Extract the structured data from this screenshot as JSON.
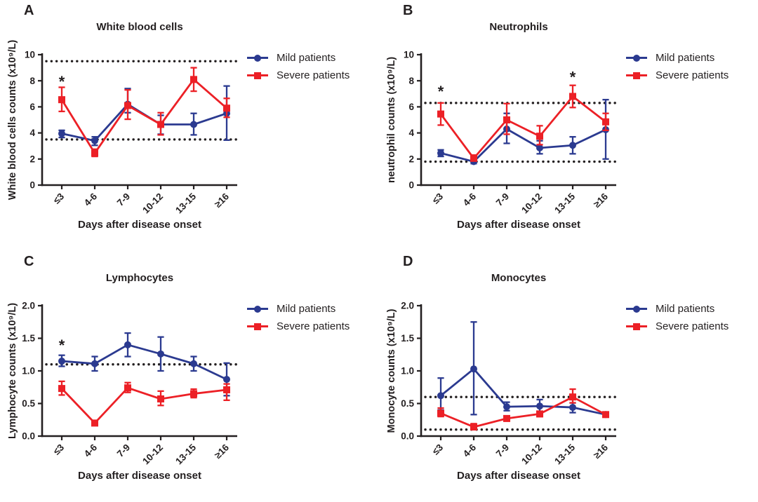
{
  "figure": {
    "background": "#ffffff"
  },
  "colors": {
    "mild": "#2B3A90",
    "severe": "#EC2026",
    "axis": "#231F20",
    "text": "#231F20"
  },
  "chart_data": [
    {
      "type": "line",
      "panel_label": "A",
      "title": "White blood cells",
      "xlabel": "Days after disease onset",
      "ylabel": "White blood cells counts (x10⁹/L)",
      "ylim": [
        0,
        10
      ],
      "yticks": [
        "0",
        "2",
        "4",
        "6",
        "8",
        "10"
      ],
      "reference_lines": [
        9.5,
        3.5
      ],
      "categories": [
        "≤3",
        "4-6",
        "7-9",
        "10-12",
        "13-15",
        "≥16"
      ],
      "legend_position": "right",
      "grid": false,
      "series": [
        {
          "name": "Mild patients",
          "marker": "circle",
          "color_key": "mild",
          "values": [
            3.95,
            3.4,
            6.2,
            4.65,
            4.65,
            5.5
          ],
          "err_low": [
            3.65,
            3.05,
            5.55,
            3.9,
            3.85,
            3.45
          ],
          "err_high": [
            4.2,
            3.7,
            7.4,
            5.35,
            5.5,
            7.6
          ]
        },
        {
          "name": "Severe patients",
          "marker": "square",
          "color_key": "severe",
          "values": [
            6.55,
            2.45,
            6.1,
            4.65,
            8.1,
            5.9
          ],
          "err_low": [
            5.65,
            2.2,
            5.05,
            3.85,
            7.2,
            5.2
          ],
          "err_high": [
            7.5,
            2.75,
            7.3,
            5.55,
            9.0,
            6.65
          ]
        }
      ],
      "significance": [
        {
          "category_index": 0,
          "y": 7.95,
          "symbol": "*"
        }
      ]
    },
    {
      "type": "line",
      "panel_label": "B",
      "title": "Neutrophils",
      "xlabel": "Days after disease onset",
      "ylabel": "neutrophil counts (x10⁹/L)",
      "ylim": [
        0,
        10
      ],
      "yticks": [
        "0",
        "2",
        "4",
        "6",
        "8",
        "10"
      ],
      "reference_lines": [
        6.3,
        1.8
      ],
      "categories": [
        "≤3",
        "4-6",
        "7-9",
        "10-12",
        "13-15",
        "≥16"
      ],
      "legend_position": "right",
      "grid": false,
      "series": [
        {
          "name": "Mild patients",
          "marker": "circle",
          "color_key": "mild",
          "values": [
            2.45,
            1.8,
            4.3,
            2.85,
            3.05,
            4.25
          ],
          "err_low": [
            2.2,
            1.65,
            3.2,
            2.4,
            2.4,
            2.0
          ],
          "err_high": [
            2.7,
            2.05,
            5.5,
            3.4,
            3.7,
            6.55
          ]
        },
        {
          "name": "Severe patients",
          "marker": "square",
          "color_key": "severe",
          "values": [
            5.45,
            2.05,
            5.0,
            3.75,
            6.8,
            4.85
          ],
          "err_low": [
            4.6,
            1.9,
            3.9,
            3.1,
            5.95,
            4.2
          ],
          "err_high": [
            6.3,
            2.3,
            6.25,
            4.55,
            7.65,
            5.5
          ]
        }
      ],
      "significance": [
        {
          "category_index": 0,
          "y": 7.2,
          "symbol": "*"
        },
        {
          "category_index": 4,
          "y": 8.3,
          "symbol": "*"
        }
      ]
    },
    {
      "type": "line",
      "panel_label": "C",
      "title": "Lymphocytes",
      "xlabel": "Days after disease onset",
      "ylabel": "Lymphocyte counts (x10⁹/L)",
      "ylim": [
        0,
        2
      ],
      "yticks": [
        "0.0",
        "0.5",
        "1.0",
        "1.5",
        "2.0"
      ],
      "reference_lines": [
        1.1
      ],
      "categories": [
        "≤3",
        "4-6",
        "7-9",
        "10-12",
        "13-15",
        "≥16"
      ],
      "legend_position": "right",
      "grid": false,
      "series": [
        {
          "name": "Mild patients",
          "marker": "circle",
          "color_key": "mild",
          "values": [
            1.15,
            1.11,
            1.4,
            1.26,
            1.11,
            0.87
          ],
          "err_low": [
            1.07,
            1.0,
            1.22,
            1.0,
            1.0,
            0.62
          ],
          "err_high": [
            1.24,
            1.22,
            1.58,
            1.52,
            1.22,
            1.12
          ]
        },
        {
          "name": "Severe patients",
          "marker": "square",
          "color_key": "severe",
          "values": [
            0.73,
            0.2,
            0.74,
            0.57,
            0.65,
            0.71
          ],
          "err_low": [
            0.63,
            0.2,
            0.67,
            0.47,
            0.59,
            0.55
          ],
          "err_high": [
            0.84,
            0.2,
            0.82,
            0.69,
            0.72,
            0.8
          ]
        }
      ],
      "significance": [
        {
          "category_index": 0,
          "y": 1.4,
          "symbol": "*"
        }
      ]
    },
    {
      "type": "line",
      "panel_label": "D",
      "title": "Monocytes",
      "xlabel": "Days after disease onset",
      "ylabel": "Monocyte counts (x10⁹/L)",
      "ylim": [
        0,
        2
      ],
      "yticks": [
        "0.0",
        "0.5",
        "1.0",
        "1.5",
        "2.0"
      ],
      "reference_lines": [
        0.6,
        0.1
      ],
      "categories": [
        "≤3",
        "4-6",
        "7-9",
        "10-12",
        "13-15",
        "≥16"
      ],
      "legend_position": "right",
      "grid": false,
      "series": [
        {
          "name": "Mild patients",
          "marker": "circle",
          "color_key": "mild",
          "values": [
            0.62,
            1.03,
            0.45,
            0.46,
            0.44,
            0.33
          ],
          "err_low": [
            0.4,
            0.33,
            0.39,
            0.38,
            0.36,
            0.33
          ],
          "err_high": [
            0.89,
            1.75,
            0.52,
            0.56,
            0.51,
            0.33
          ]
        },
        {
          "name": "Severe patients",
          "marker": "square",
          "color_key": "severe",
          "values": [
            0.35,
            0.14,
            0.27,
            0.34,
            0.6,
            0.33
          ],
          "err_low": [
            0.3,
            0.1,
            0.24,
            0.3,
            0.51,
            0.3
          ],
          "err_high": [
            0.43,
            0.19,
            0.3,
            0.38,
            0.72,
            0.36
          ]
        }
      ],
      "significance": []
    }
  ]
}
